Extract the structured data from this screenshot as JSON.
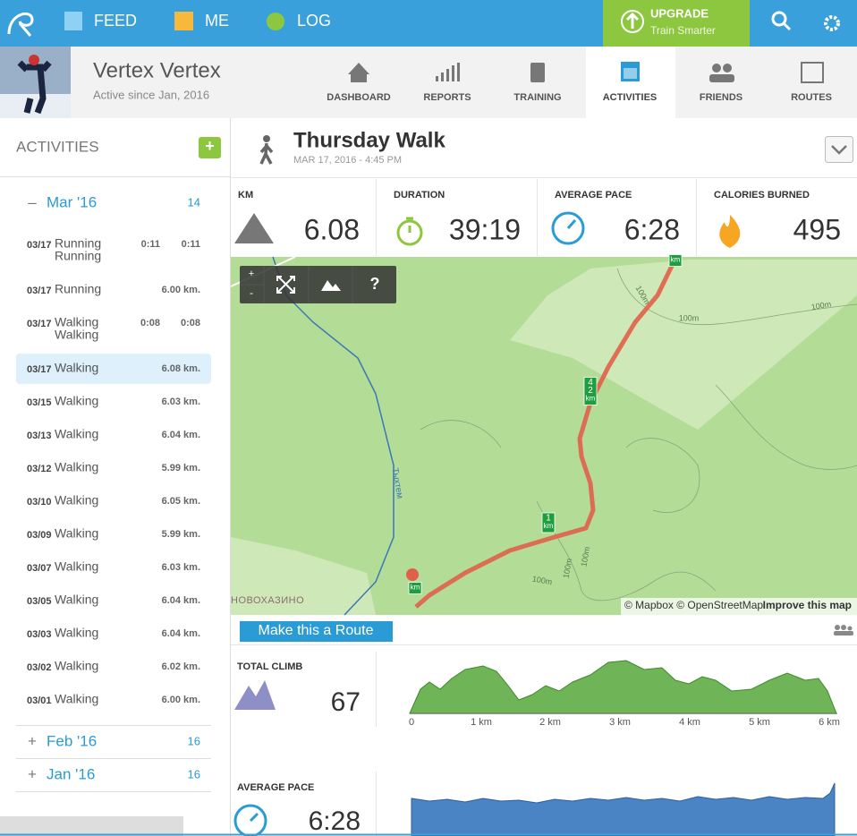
{
  "nav": {
    "feed": "FEED",
    "me": "ME",
    "log": "LOG",
    "upgrade": "UPGRADE",
    "upgrade_sub": "Train Smarter"
  },
  "profile": {
    "name": "Vertex Vertex",
    "since": "Active since Jan, 2016"
  },
  "tabs": [
    "DASHBOARD",
    "REPORTS",
    "TRAINING",
    "ACTIVITIES",
    "FRIENDS",
    "ROUTES"
  ],
  "active_tab": "ACTIVITIES",
  "sidebar": {
    "title": "ACTIVITIES",
    "add": "+",
    "months": [
      {
        "sign": "–",
        "label": "Mar '16",
        "count": "14",
        "activities": [
          {
            "date": "03/17",
            "name": [
              "Running",
              "Running"
            ],
            "times": [
              "0:11",
              "0:11"
            ]
          },
          {
            "date": "03/17",
            "name": "Running",
            "distance": "6.00 km."
          },
          {
            "date": "03/17",
            "name": [
              "Walking",
              "Walking"
            ],
            "times": [
              "0:08",
              "0:08"
            ]
          },
          {
            "date": "03/17",
            "name": "Walking",
            "distance": "6.08 km.",
            "selected": true
          },
          {
            "date": "03/15",
            "name": "Walking",
            "distance": "6.03 km."
          },
          {
            "date": "03/13",
            "name": "Walking",
            "distance": "6.04 km."
          },
          {
            "date": "03/12",
            "name": "Walking",
            "distance": "5.99 km."
          },
          {
            "date": "03/10",
            "name": "Walking",
            "distance": "6.05 km."
          },
          {
            "date": "03/09",
            "name": "Walking",
            "distance": "5.99 km."
          },
          {
            "date": "03/07",
            "name": "Walking",
            "distance": "6.03 km."
          },
          {
            "date": "03/05",
            "name": "Walking",
            "distance": "6.04 km."
          },
          {
            "date": "03/03",
            "name": "Walking",
            "distance": "6.04 km."
          },
          {
            "date": "03/02",
            "name": "Walking",
            "distance": "6.02 km."
          },
          {
            "date": "03/01",
            "name": "Walking",
            "distance": "6.00 km."
          }
        ]
      },
      {
        "sign": "+",
        "label": "Feb '16",
        "count": "16"
      },
      {
        "sign": "+",
        "label": "Jan '16",
        "count": "16"
      }
    ]
  },
  "activity": {
    "title": "Thursday Walk",
    "date": "MAR 17, 2016 - 4:45 PM",
    "stats": [
      {
        "label": "KM",
        "value": "6.08"
      },
      {
        "label": "DURATION",
        "value": "39:19"
      },
      {
        "label": "AVERAGE PACE",
        "value": "6:28"
      },
      {
        "label": "CALORIES BURNED",
        "value": "495"
      }
    ]
  },
  "map": {
    "zoom_in": "+",
    "zoom_out": "-",
    "help": "?",
    "attribution": "© Mapbox © OpenStreetMap",
    "improve": "Improve this map",
    "place": "НОВОХАЗИНО",
    "river": "Тыхтем",
    "contour_labels": [
      "100m",
      "100m",
      "100m",
      "100m",
      "100m",
      "100m"
    ],
    "markers": [
      [
        "km"
      ],
      [
        "4",
        "2",
        "km"
      ],
      [
        "1",
        "km"
      ],
      [
        "km"
      ]
    ]
  },
  "route_button": "Make this a Route",
  "elevation": {
    "label": "TOTAL CLIMB",
    "value": "67",
    "ticks": [
      "0",
      "1 km",
      "2 km",
      "3 km",
      "4 km",
      "5 km",
      "6 km"
    ]
  },
  "pace": {
    "label": "AVERAGE PACE",
    "value": "6:28"
  }
}
